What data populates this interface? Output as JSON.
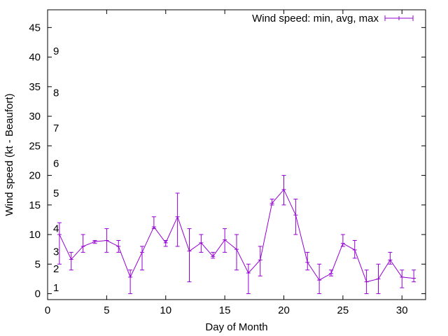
{
  "chart_data": {
    "type": "line",
    "xlabel": "Day of Month",
    "ylabel": "Wind speed (kt - Beaufort)",
    "xlim": [
      0,
      32
    ],
    "ylim": [
      -1,
      48
    ],
    "x_ticks": [
      0,
      5,
      10,
      15,
      20,
      25,
      30
    ],
    "y_ticks": [
      0,
      5,
      10,
      15,
      20,
      25,
      30,
      35,
      40,
      45
    ],
    "grid": false,
    "legend_position": "top-right",
    "series_color": "#9400d3",
    "series": [
      {
        "name": "Wind speed: min, avg, max",
        "style": "errorbars-with-line",
        "x": [
          1,
          2,
          3,
          4,
          5,
          6,
          7,
          8,
          9,
          10,
          11,
          12,
          13,
          14,
          15,
          16,
          17,
          18,
          19,
          20,
          21,
          22,
          23,
          24,
          25,
          26,
          27,
          28,
          29,
          30,
          31
        ],
        "avg": [
          10,
          5.8,
          8.0,
          8.8,
          9.0,
          8.0,
          2.8,
          7.0,
          11.3,
          8.6,
          13.0,
          7.2,
          8.6,
          6.3,
          9.1,
          7.5,
          3.5,
          5.7,
          15.3,
          17.6,
          13.3,
          5.3,
          2.3,
          3.4,
          8.5,
          7.4,
          2.0,
          2.5,
          5.7,
          2.8,
          2.6
        ],
        "min": [
          5,
          4,
          7,
          8.5,
          7,
          7,
          0,
          4,
          11,
          8,
          8,
          2,
          7,
          6,
          7,
          4,
          0,
          3,
          15,
          15,
          10,
          4,
          0,
          3,
          8,
          6,
          0,
          0,
          5,
          1,
          2
        ],
        "max": [
          12,
          7,
          10,
          9,
          11,
          9,
          4,
          8,
          13,
          9,
          17,
          11,
          10,
          7,
          11,
          10,
          5,
          8,
          16,
          20,
          16,
          7,
          5,
          4,
          10,
          9,
          4,
          5,
          7,
          4,
          4
        ]
      }
    ],
    "beaufort_labels": [
      {
        "label": "1",
        "y": 1.0
      },
      {
        "label": "2",
        "y": 4.2
      },
      {
        "label": "3",
        "y": 7.1
      },
      {
        "label": "4",
        "y": 11.0
      },
      {
        "label": "5",
        "y": 17.0
      },
      {
        "label": "6",
        "y": 22.0
      },
      {
        "label": "7",
        "y": 28.0
      },
      {
        "label": "8",
        "y": 34.0
      },
      {
        "label": "9",
        "y": 41.0
      }
    ]
  }
}
